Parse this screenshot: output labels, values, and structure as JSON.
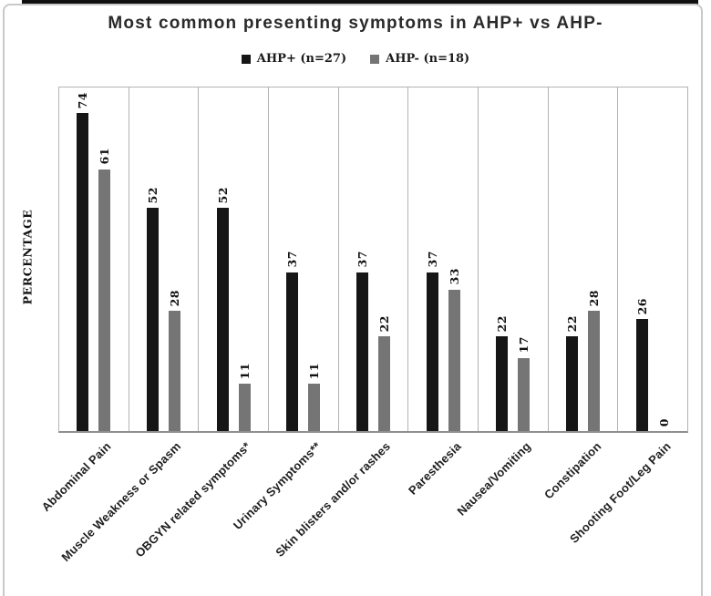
{
  "chart_data": {
    "type": "bar",
    "title": "Most common presenting symptoms in AHP+ vs AHP-",
    "ylabel": "PERCENTAGE",
    "xlabel": "",
    "ylim": [
      0,
      80
    ],
    "grid": "vertical-category-separators",
    "legend_position": "top-center",
    "categories": [
      "Abdominal Pain",
      "Muscle Weakness or Spasm",
      "OBGYN related symptoms*",
      "Urinary Symptoms**",
      "Skin blisters and/or rashes",
      "Paresthesia",
      "Nausea/Vomiting",
      "Constipation",
      "Shooting Foot/Leg Pain"
    ],
    "series": [
      {
        "name": "AHP+ (n=27)",
        "color": "#161616",
        "values": [
          74,
          52,
          52,
          37,
          37,
          37,
          22,
          22,
          26
        ]
      },
      {
        "name": "AHP- (n=18)",
        "color": "#757575",
        "values": [
          61,
          28,
          11,
          11,
          22,
          33,
          17,
          28,
          0
        ]
      }
    ]
  }
}
